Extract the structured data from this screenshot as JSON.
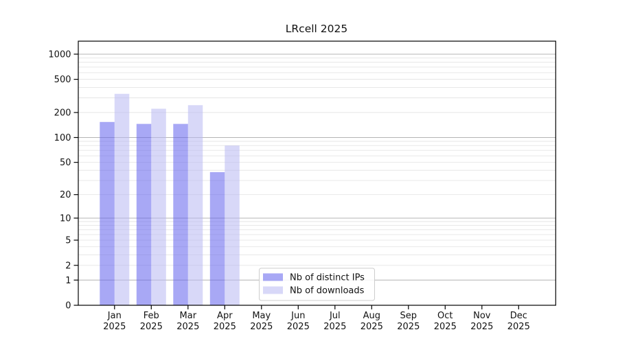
{
  "figure": {
    "title": "LRcell 2025"
  },
  "chart_data": {
    "type": "bar",
    "title": "LRcell 2025",
    "xlabel": "",
    "ylabel": "",
    "x_months": [
      "Jan",
      "Feb",
      "Mar",
      "Apr",
      "May",
      "Jun",
      "Jul",
      "Aug",
      "Sep",
      "Oct",
      "Nov",
      "Dec"
    ],
    "x_year": "2025",
    "series": [
      {
        "name": "Nb of distinct IPs",
        "values": [
          154,
          146,
          146,
          38,
          0,
          0,
          0,
          0,
          0,
          0,
          0,
          0
        ],
        "color": "#6161ed",
        "fill_opacity": 0.55,
        "rendered_color": "#a8a8f5"
      },
      {
        "name": "Nb of downloads",
        "values": [
          335,
          222,
          245,
          80,
          0,
          0,
          0,
          0,
          0,
          0,
          0,
          0
        ],
        "color": "#b8b8f2",
        "fill_opacity": 0.55,
        "rendered_color": "#d8d8f8"
      }
    ],
    "yscale": "log10(value+1)",
    "ytick_values": [
      0,
      1,
      2,
      5,
      10,
      20,
      50,
      100,
      200,
      500,
      1000
    ],
    "ylim": [
      0,
      1400
    ],
    "grid": {
      "horizontal": true,
      "major_color": "#b4b4b4",
      "minor_color": "#e5e5e5"
    },
    "legend": {
      "position": "inside-bottom-center",
      "border_color": "#cccccc"
    },
    "axis_color": "#000000"
  }
}
